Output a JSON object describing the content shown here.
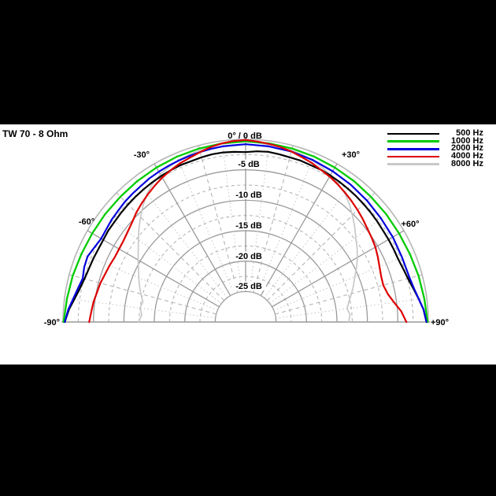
{
  "title": "TW 70 - 8 Ohm",
  "legend": {
    "position": "top-right",
    "items": [
      {
        "label": "500 Hz",
        "color": "#000000"
      },
      {
        "label": "1000 Hz",
        "color": "#00cc00"
      },
      {
        "label": "2000 Hz",
        "color": "#0000dd"
      },
      {
        "label": "4000 Hz",
        "color": "#dd0000"
      },
      {
        "label": "8000 Hz",
        "color": "#c8c8c8"
      }
    ]
  },
  "plot_labels": {
    "top": "0° / 0 dB",
    "m30": "-30°",
    "p30": "+30°",
    "m60": "-60°",
    "p60": "+60°",
    "m90": "-90°",
    "p90": "+90°",
    "db": [
      "-5 dB",
      "-10 dB",
      "-15 dB",
      "-20 dB",
      "-25 dB"
    ]
  },
  "grid_colors": {
    "outer_ring": "#b5b5b5",
    "solid": "#9a9a9a",
    "dashed": "#b5b5b5",
    "dotted": "#c4c4c4",
    "background": "#ffffff",
    "letterbox": "#000000"
  },
  "chart_data": {
    "type": "line",
    "subtype": "polar-directivity-half",
    "title": "TW 70 - 8 Ohm",
    "angle_axis": {
      "unit": "deg",
      "min": -90,
      "max": 90,
      "solid_lines_deg": [
        -60,
        -30,
        0,
        30,
        60
      ],
      "dashed_lines_deg": [
        -75,
        -45,
        -15,
        15,
        45,
        75
      ],
      "dotted_lines_deg": [
        -82.5,
        -67.5,
        -52.5,
        -37.5,
        -22.5,
        -7.5,
        7.5,
        22.5,
        37.5,
        52.5,
        67.5,
        82.5
      ]
    },
    "radial_axis": {
      "unit": "dB",
      "outer_db": 0,
      "center_db": -30,
      "solid_rings_db": [
        0,
        -5,
        -10,
        -15,
        -20,
        -25
      ],
      "dashed_rings_db": [
        -2.5,
        -7.5,
        -12.5,
        -17.5,
        -22.5
      ],
      "inner_hole_db": -25,
      "ring_label_db": [
        -5,
        -10,
        -15,
        -20,
        -25
      ]
    },
    "legend_position": "top-right",
    "series": [
      {
        "name": "500 Hz",
        "color": "#000000",
        "width": 2.2,
        "points": [
          [
            -90,
            -0.3
          ],
          [
            -86,
            -0.9
          ],
          [
            -82.5,
            -1.6
          ],
          [
            -78.8,
            -2.2
          ],
          [
            -75,
            -2.6
          ],
          [
            -71.3,
            -2.8
          ],
          [
            -67.5,
            -2.9
          ],
          [
            -63.8,
            -3
          ],
          [
            -60,
            -3
          ],
          [
            -56.3,
            -2.9
          ],
          [
            -52.5,
            -2.9
          ],
          [
            -48.8,
            -2.8
          ],
          [
            -45,
            -2.7
          ],
          [
            -41.3,
            -2.6
          ],
          [
            -37.5,
            -2.5
          ],
          [
            -33.8,
            -2.4
          ],
          [
            -30,
            -2.3
          ],
          [
            -26.3,
            -2.2
          ],
          [
            -22.5,
            -2.1
          ],
          [
            -18.8,
            -2.1
          ],
          [
            -15,
            -2
          ],
          [
            -11.3,
            -1.9
          ],
          [
            -7.5,
            -1.9
          ],
          [
            -3.8,
            -2
          ],
          [
            0,
            -2.1
          ],
          [
            3.8,
            -1.9
          ],
          [
            7.5,
            -1.8
          ],
          [
            11.3,
            -1.9
          ],
          [
            15,
            -2
          ],
          [
            18.8,
            -2
          ],
          [
            22.5,
            -2.1
          ],
          [
            26.3,
            -2.1
          ],
          [
            30,
            -2.2
          ],
          [
            33.8,
            -2.3
          ],
          [
            37.5,
            -2.4
          ],
          [
            41.3,
            -2.5
          ],
          [
            45,
            -2.6
          ],
          [
            48.8,
            -2.7
          ],
          [
            52.5,
            -2.8
          ],
          [
            56.3,
            -2.9
          ],
          [
            60,
            -2.9
          ],
          [
            63.8,
            -2.9
          ],
          [
            67.5,
            -2.9
          ],
          [
            71.3,
            -2.7
          ],
          [
            75,
            -2.4
          ],
          [
            78.8,
            -1.9
          ],
          [
            82.5,
            -1.3
          ],
          [
            86,
            -0.7
          ],
          [
            90,
            -0.3
          ]
        ]
      },
      {
        "name": "1000 Hz",
        "color": "#00cc00",
        "width": 2.3,
        "points": [
          [
            -90,
            -0.1
          ],
          [
            -82.5,
            -0.4
          ],
          [
            -75,
            -0.6
          ],
          [
            -67.5,
            -0.8
          ],
          [
            -60,
            -0.9
          ],
          [
            -52.5,
            -0.9
          ],
          [
            -45,
            -0.9
          ],
          [
            -37.5,
            -0.8
          ],
          [
            -30,
            -0.7
          ],
          [
            -22.5,
            -0.6
          ],
          [
            -15,
            -0.5
          ],
          [
            -7.5,
            -0.4
          ],
          [
            0,
            -0.3
          ],
          [
            7.5,
            -0.4
          ],
          [
            15,
            -0.5
          ],
          [
            22.5,
            -0.6
          ],
          [
            30,
            -0.7
          ],
          [
            37.5,
            -0.8
          ],
          [
            45,
            -0.9
          ],
          [
            52.5,
            -0.9
          ],
          [
            60,
            -0.9
          ],
          [
            67.5,
            -0.8
          ],
          [
            75,
            -0.6
          ],
          [
            82.5,
            -0.4
          ],
          [
            90,
            -0.1
          ]
        ]
      },
      {
        "name": "2000 Hz",
        "color": "#0000dd",
        "width": 2.2,
        "points": [
          [
            -90,
            -0.3
          ],
          [
            -86,
            -0.8
          ],
          [
            -82.5,
            -1.4
          ],
          [
            -78.8,
            -1.9
          ],
          [
            -75,
            -2.3
          ],
          [
            -71.3,
            -2
          ],
          [
            -67.5,
            -1.9
          ],
          [
            -63.8,
            -2.3
          ],
          [
            -60,
            -2.6
          ],
          [
            -56.3,
            -2.5
          ],
          [
            -52.5,
            -2.3
          ],
          [
            -48.8,
            -2.2
          ],
          [
            -45,
            -2
          ],
          [
            -41.3,
            -1.9
          ],
          [
            -37.5,
            -1.8
          ],
          [
            -33.8,
            -1.6
          ],
          [
            -30,
            -1.5
          ],
          [
            -26.3,
            -1.4
          ],
          [
            -22.5,
            -1.3
          ],
          [
            -18.8,
            -1.2
          ],
          [
            -15,
            -1.1
          ],
          [
            -11.3,
            -1
          ],
          [
            -7.5,
            -0.9
          ],
          [
            -3.8,
            -0.9
          ],
          [
            0,
            -0.8
          ],
          [
            7.5,
            -0.9
          ],
          [
            15,
            -1
          ],
          [
            22.5,
            -1.2
          ],
          [
            30,
            -1.4
          ],
          [
            37.5,
            -1.6
          ],
          [
            45,
            -1.8
          ],
          [
            52.5,
            -2
          ],
          [
            60,
            -2.1
          ],
          [
            67.5,
            -2.2
          ],
          [
            75,
            -2.1
          ],
          [
            78.8,
            -1.8
          ],
          [
            82.5,
            -1.3
          ],
          [
            86,
            -0.7
          ],
          [
            90,
            -0.3
          ]
        ]
      },
      {
        "name": "4000 Hz",
        "color": "#dd0000",
        "width": 2.2,
        "points": [
          [
            -90,
            -4.3
          ],
          [
            -86,
            -4.6
          ],
          [
            -82.5,
            -4.8
          ],
          [
            -78.8,
            -5.1
          ],
          [
            -75,
            -5.3
          ],
          [
            -71.3,
            -5.6
          ],
          [
            -67.5,
            -5.8
          ],
          [
            -63.8,
            -6
          ],
          [
            -60,
            -6
          ],
          [
            -56.3,
            -5.9
          ],
          [
            -52.5,
            -5.6
          ],
          [
            -48.8,
            -5.2
          ],
          [
            -45,
            -4.6
          ],
          [
            -41.3,
            -4.1
          ],
          [
            -37.5,
            -3.6
          ],
          [
            -33.8,
            -3.1
          ],
          [
            -30,
            -2.6
          ],
          [
            -26.3,
            -2.2
          ],
          [
            -22.5,
            -1.8
          ],
          [
            -18.8,
            -1.5
          ],
          [
            -15,
            -1.1
          ],
          [
            -11.3,
            -0.7
          ],
          [
            -7.5,
            -0.4
          ],
          [
            -3.8,
            -0.2
          ],
          [
            0,
            -0.1
          ],
          [
            3.8,
            -0.3
          ],
          [
            7.5,
            -0.5
          ],
          [
            11.3,
            -0.7
          ],
          [
            15,
            -1
          ],
          [
            18.8,
            -1.4
          ],
          [
            22.5,
            -1.7
          ],
          [
            26.3,
            -2.1
          ],
          [
            30,
            -2.4
          ],
          [
            33.8,
            -2.8
          ],
          [
            37.5,
            -3.2
          ],
          [
            41.3,
            -3.6
          ],
          [
            45,
            -4
          ],
          [
            48.8,
            -4.4
          ],
          [
            52.5,
            -4.8
          ],
          [
            56.3,
            -5.1
          ],
          [
            60,
            -5.4
          ],
          [
            63.8,
            -5.8
          ],
          [
            67.5,
            -6.2
          ],
          [
            71.3,
            -6.5
          ],
          [
            75,
            -6.6
          ],
          [
            78.8,
            -6.2
          ],
          [
            82.5,
            -5.4
          ],
          [
            86,
            -4.4
          ],
          [
            90,
            -3.6
          ]
        ]
      },
      {
        "name": "8000 Hz",
        "color": "#c8c8c8",
        "width": 1.7,
        "points": [
          [
            -90,
            -12.4
          ],
          [
            -86,
            -12.9
          ],
          [
            -82.5,
            -12.5
          ],
          [
            -78.8,
            -12.8
          ],
          [
            -75,
            -12.2
          ],
          [
            -71.3,
            -11.6
          ],
          [
            -67.5,
            -11
          ],
          [
            -63.8,
            -10.4
          ],
          [
            -60,
            -9.6
          ],
          [
            -56.3,
            -8.8
          ],
          [
            -52.5,
            -7.8
          ],
          [
            -48.8,
            -6.7
          ],
          [
            -45,
            -5.6
          ],
          [
            -41.3,
            -4.5
          ],
          [
            -37.5,
            -3.4
          ],
          [
            -33.8,
            -2.6
          ],
          [
            -30,
            -2
          ],
          [
            -26.3,
            -1.6
          ],
          [
            -22.5,
            -1.2
          ],
          [
            -18.8,
            -1
          ],
          [
            -15,
            -0.8
          ],
          [
            -11.3,
            -0.6
          ],
          [
            -7.5,
            -0.5
          ],
          [
            -3.8,
            -0.5
          ],
          [
            0,
            -0.4
          ],
          [
            3.8,
            -0.5
          ],
          [
            7.5,
            -0.6
          ],
          [
            11.3,
            -0.7
          ],
          [
            15,
            -0.8
          ],
          [
            18.8,
            -1
          ],
          [
            22.5,
            -1.3
          ],
          [
            26.3,
            -1.7
          ],
          [
            30,
            -2.1
          ],
          [
            33.8,
            -2.7
          ],
          [
            37.5,
            -3.3
          ],
          [
            41.3,
            -4.2
          ],
          [
            45,
            -5.2
          ],
          [
            48.8,
            -6.2
          ],
          [
            52.5,
            -7.2
          ],
          [
            56.3,
            -8
          ],
          [
            60,
            -8.8
          ],
          [
            63.8,
            -9.7
          ],
          [
            67.5,
            -10.6
          ],
          [
            71.3,
            -11.3
          ],
          [
            75,
            -12
          ],
          [
            78.8,
            -12.7
          ],
          [
            82.5,
            -13.2
          ],
          [
            86,
            -12.8
          ],
          [
            90,
            -13.1
          ]
        ]
      }
    ]
  }
}
